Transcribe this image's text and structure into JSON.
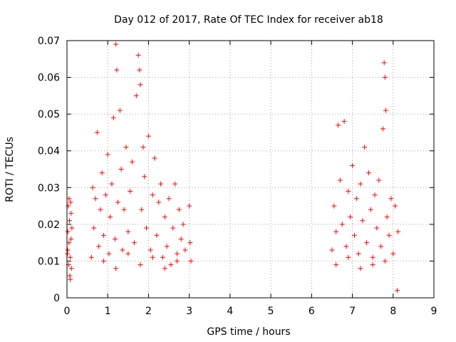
{
  "chart_data": {
    "type": "scatter",
    "title": "Day 012 of 2017, Rate Of TEC Index for receiver ab18",
    "xlabel": "GPS time / hours",
    "ylabel": "ROTI / TECUs",
    "xlim": [
      0,
      9
    ],
    "ylim": [
      0,
      0.07
    ],
    "x_ticks": [
      0,
      1,
      2,
      3,
      4,
      5,
      6,
      7,
      8,
      9
    ],
    "y_ticks": [
      0,
      0.01,
      0.02,
      0.03,
      0.04,
      0.05,
      0.06,
      0.07
    ],
    "x_tick_labels": [
      "0",
      "1",
      "2",
      "3",
      "4",
      "5",
      "6",
      "7",
      "8",
      "9"
    ],
    "y_tick_labels": [
      "0",
      "0.01",
      "0.02",
      "0.03",
      "0.04",
      "0.05",
      "0.06",
      "0.07"
    ],
    "grid": true,
    "marker": "+",
    "series_color": "#ff0000",
    "series": [
      {
        "name": "ROTI",
        "points": [
          [
            0.01,
            0.012
          ],
          [
            0.02,
            0.018
          ],
          [
            0.03,
            0.025
          ],
          [
            0.04,
            0.009
          ],
          [
            0.05,
            0.015
          ],
          [
            0.06,
            0.021
          ],
          [
            0.07,
            0.006
          ],
          [
            0.08,
            0.011
          ],
          [
            0.09,
            0.026
          ],
          [
            0.1,
            0.016
          ],
          [
            0.11,
            0.008
          ],
          [
            0.12,
            0.019
          ],
          [
            0.02,
            0.013
          ],
          [
            0.05,
            0.027
          ],
          [
            0.08,
            0.005
          ],
          [
            0.1,
            0.023
          ],
          [
            0.6,
            0.011
          ],
          [
            0.63,
            0.03
          ],
          [
            0.66,
            0.019
          ],
          [
            0.7,
            0.027
          ],
          [
            0.74,
            0.045
          ],
          [
            0.78,
            0.014
          ],
          [
            0.82,
            0.024
          ],
          [
            0.86,
            0.034
          ],
          [
            0.9,
            0.017
          ],
          [
            0.95,
            0.028
          ],
          [
            1.0,
            0.039
          ],
          [
            1.03,
            0.012
          ],
          [
            1.06,
            0.022
          ],
          [
            1.1,
            0.031
          ],
          [
            1.14,
            0.049
          ],
          [
            1.18,
            0.016
          ],
          [
            1.2,
            0.069
          ],
          [
            1.22,
            0.062
          ],
          [
            1.25,
            0.026
          ],
          [
            1.3,
            0.051
          ],
          [
            1.33,
            0.035
          ],
          [
            1.36,
            0.013
          ],
          [
            1.4,
            0.024
          ],
          [
            1.45,
            0.041
          ],
          [
            1.5,
            0.018
          ],
          [
            1.55,
            0.029
          ],
          [
            1.6,
            0.037
          ],
          [
            1.65,
            0.015
          ],
          [
            1.7,
            0.055
          ],
          [
            1.75,
            0.066
          ],
          [
            1.78,
            0.062
          ],
          [
            1.8,
            0.058
          ],
          [
            1.83,
            0.024
          ],
          [
            1.87,
            0.041
          ],
          [
            1.9,
            0.033
          ],
          [
            1.95,
            0.019
          ],
          [
            2.0,
            0.044
          ],
          [
            2.05,
            0.013
          ],
          [
            2.1,
            0.028
          ],
          [
            2.15,
            0.038
          ],
          [
            2.2,
            0.017
          ],
          [
            2.25,
            0.026
          ],
          [
            2.3,
            0.031
          ],
          [
            2.35,
            0.011
          ],
          [
            2.4,
            0.022
          ],
          [
            2.45,
            0.014
          ],
          [
            2.5,
            0.027
          ],
          [
            2.55,
            0.009
          ],
          [
            2.6,
            0.019
          ],
          [
            2.65,
            0.031
          ],
          [
            2.7,
            0.012
          ],
          [
            2.75,
            0.024
          ],
          [
            2.8,
            0.016
          ],
          [
            2.85,
            0.02
          ],
          [
            2.9,
            0.013
          ],
          [
            3.0,
            0.025
          ],
          [
            3.02,
            0.015
          ],
          [
            3.04,
            0.01
          ],
          [
            0.9,
            0.01
          ],
          [
            1.2,
            0.008
          ],
          [
            1.5,
            0.012
          ],
          [
            1.8,
            0.009
          ],
          [
            2.1,
            0.011
          ],
          [
            2.4,
            0.008
          ],
          [
            2.7,
            0.01
          ],
          [
            6.5,
            0.013
          ],
          [
            6.55,
            0.025
          ],
          [
            6.6,
            0.018
          ],
          [
            6.65,
            0.047
          ],
          [
            6.7,
            0.032
          ],
          [
            6.75,
            0.02
          ],
          [
            6.8,
            0.048
          ],
          [
            6.85,
            0.014
          ],
          [
            6.9,
            0.029
          ],
          [
            6.95,
            0.022
          ],
          [
            7.0,
            0.036
          ],
          [
            7.05,
            0.017
          ],
          [
            7.1,
            0.027
          ],
          [
            7.15,
            0.012
          ],
          [
            7.2,
            0.031
          ],
          [
            7.25,
            0.021
          ],
          [
            7.3,
            0.041
          ],
          [
            7.35,
            0.015
          ],
          [
            7.4,
            0.034
          ],
          [
            7.45,
            0.024
          ],
          [
            7.5,
            0.011
          ],
          [
            7.55,
            0.028
          ],
          [
            7.6,
            0.019
          ],
          [
            7.65,
            0.032
          ],
          [
            7.7,
            0.014
          ],
          [
            7.75,
            0.046
          ],
          [
            7.78,
            0.064
          ],
          [
            7.8,
            0.06
          ],
          [
            7.82,
            0.051
          ],
          [
            7.85,
            0.022
          ],
          [
            7.9,
            0.017
          ],
          [
            7.95,
            0.027
          ],
          [
            8.0,
            0.012
          ],
          [
            8.05,
            0.025
          ],
          [
            8.1,
            0.002
          ],
          [
            8.12,
            0.018
          ],
          [
            6.6,
            0.009
          ],
          [
            6.9,
            0.011
          ],
          [
            7.2,
            0.008
          ],
          [
            7.5,
            0.009
          ],
          [
            7.8,
            0.01
          ]
        ]
      }
    ]
  }
}
